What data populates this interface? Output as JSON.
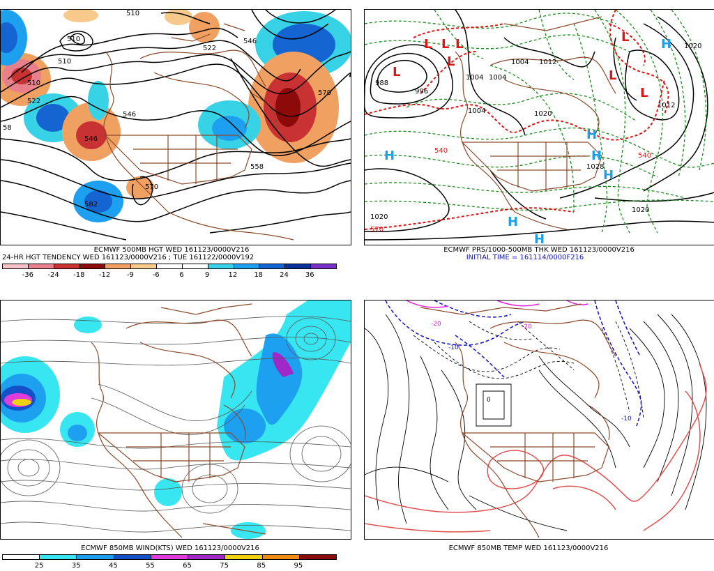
{
  "panels": {
    "hgt500": {
      "caption_line1": "ECMWF 500MB HGT WED 161123/0000V216",
      "caption_line2": "24-HR HGT TENDENCY WED 161123/0000V216 ; TUE 161122/0000V192",
      "contour_labels": [
        "510",
        "510",
        "510",
        "522",
        "546",
        "546",
        "570",
        "510",
        "522",
        "558",
        "58",
        "546",
        "570",
        "582"
      ],
      "colorbar": {
        "colors": [
          "#f6c1c6",
          "#e8808c",
          "#c83232",
          "#8c0a0a",
          "#f0a060",
          "#f7c98b",
          "#ffffff",
          "#ffffff",
          "#37d2e6",
          "#1ea0f0",
          "#1464d2",
          "#0a3296",
          "#7830c8"
        ],
        "ticks": [
          "-36",
          "-24",
          "-18",
          "-12",
          "-9",
          "-6",
          "6",
          "9",
          "12",
          "18",
          "24",
          "36"
        ]
      }
    },
    "prs": {
      "caption_line1": "ECMWF PRS/1000-500MB THK WED 161123/0000V216",
      "caption_line2": "INITIAL TIME = 161114/0000F216",
      "high_symbol": "H",
      "low_symbol": "L",
      "contour_labels": [
        "988",
        "996",
        "1004",
        "1004",
        "1004",
        "1012",
        "1020",
        "1020",
        "1020",
        "1004",
        "1028",
        "1020",
        "1012",
        "540",
        "570",
        "540"
      ]
    },
    "wind850": {
      "caption": "ECMWF 850MB WIND(KTS) WED 161123/0000V216",
      "colorbar": {
        "colors": [
          "#ffffff",
          "#37e6f0",
          "#1ea0f0",
          "#1450c8",
          "#e03cdc",
          "#a028c8",
          "#f0d210",
          "#f08c14",
          "#8c0a0a"
        ],
        "ticks": [
          "25",
          "35",
          "45",
          "55",
          "65",
          "75",
          "85",
          "95"
        ]
      }
    },
    "temp850": {
      "caption": "ECMWF 850MB TEMP WED 161123/0000V216",
      "contour_labels": [
        "-20",
        "-10",
        "-10",
        "0",
        "-20"
      ]
    }
  }
}
